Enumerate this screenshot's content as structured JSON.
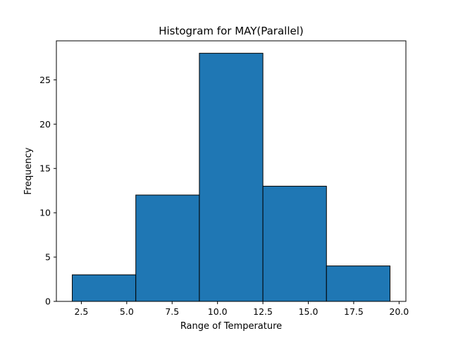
{
  "chart_data": {
    "type": "histogram",
    "title": "Histogram for MAY(Parallel)",
    "xlabel": "Range of Temperature",
    "ylabel": "Frequency",
    "bins": [
      {
        "start": 2.0,
        "end": 5.5,
        "count": 3
      },
      {
        "start": 5.5,
        "end": 9.0,
        "count": 12
      },
      {
        "start": 9.0,
        "end": 12.5,
        "count": 28
      },
      {
        "start": 12.5,
        "end": 16.0,
        "count": 13
      },
      {
        "start": 16.0,
        "end": 19.5,
        "count": 4
      }
    ],
    "xlim": [
      1.125,
      20.375
    ],
    "ylim": [
      0,
      29.4
    ],
    "xticks": [
      "2.5",
      "5.0",
      "7.5",
      "10.0",
      "12.5",
      "15.0",
      "17.5",
      "20.0"
    ],
    "yticks": [
      "0",
      "5",
      "10",
      "15",
      "20",
      "25"
    ],
    "bar_color": "#1f77b4",
    "edge_color": "#000000",
    "grid": false
  }
}
